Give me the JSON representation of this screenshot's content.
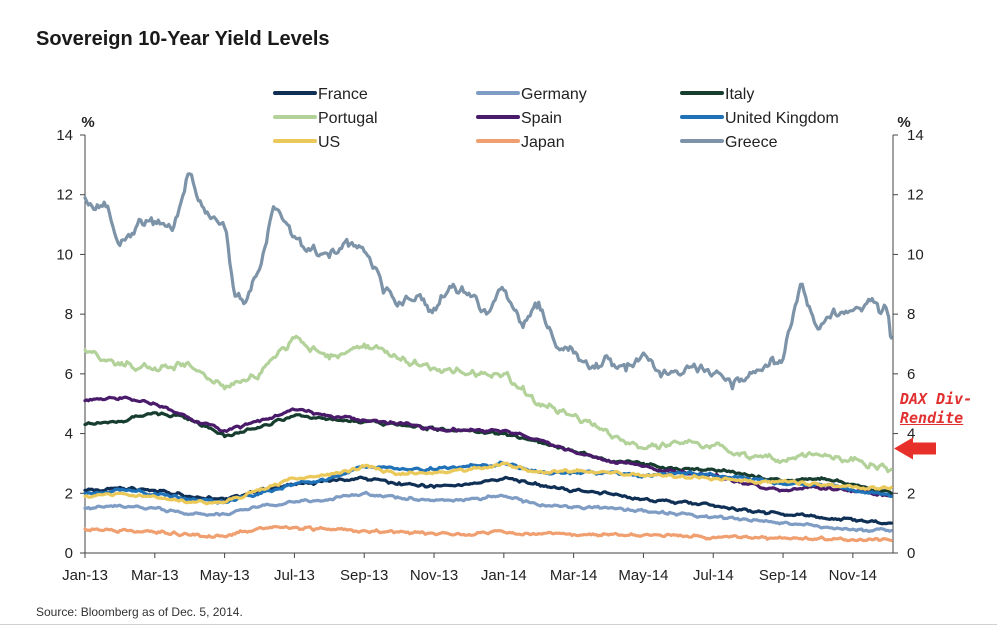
{
  "chart_data": {
    "type": "line",
    "title": "Sovereign 10-Year Yield Levels",
    "ylabel_left": "%",
    "ylabel_right": "%",
    "ylim": [
      0,
      14
    ],
    "yticks": [
      0,
      2,
      4,
      6,
      8,
      10,
      12,
      14
    ],
    "x_tick_labels": [
      "Jan-13",
      "Mar-13",
      "May-13",
      "Jul-13",
      "Sep-13",
      "Nov-13",
      "Jan-14",
      "Mar-14",
      "May-14",
      "Jul-14",
      "Sep-14",
      "Nov-14"
    ],
    "x_unit": "month index (0 = Jan-13)",
    "xlim": [
      0,
      23.15
    ],
    "series": [
      {
        "name": "France",
        "color": "#0f2f55",
        "x": [
          0,
          1,
          2,
          3,
          4,
          5,
          6,
          7,
          8,
          9,
          10,
          11,
          12,
          13,
          14,
          15,
          16,
          17,
          18,
          19,
          20,
          21,
          22,
          23.1
        ],
        "values": [
          2.1,
          2.2,
          2.1,
          1.9,
          1.8,
          2.1,
          2.3,
          2.4,
          2.5,
          2.35,
          2.2,
          2.3,
          2.5,
          2.3,
          2.1,
          2.0,
          1.8,
          1.7,
          1.6,
          1.4,
          1.3,
          1.2,
          1.1,
          1.0
        ]
      },
      {
        "name": "Germany",
        "color": "#7f9dc4",
        "x": [
          0,
          1,
          2,
          3,
          4,
          5,
          6,
          7,
          8,
          9,
          10,
          11,
          12,
          13,
          14,
          15,
          16,
          17,
          18,
          19,
          20,
          21,
          22,
          23.1
        ],
        "values": [
          1.5,
          1.6,
          1.5,
          1.3,
          1.3,
          1.55,
          1.7,
          1.8,
          2.0,
          1.85,
          1.75,
          1.8,
          1.9,
          1.6,
          1.55,
          1.5,
          1.4,
          1.3,
          1.2,
          1.1,
          1.0,
          0.9,
          0.8,
          0.75
        ]
      },
      {
        "name": "Italy",
        "color": "#173d2f",
        "x": [
          0,
          1,
          2,
          3,
          4,
          5,
          6,
          7,
          8,
          9,
          10,
          11,
          12,
          13,
          14,
          15,
          16,
          17,
          18,
          19,
          20,
          21,
          22,
          23.1
        ],
        "values": [
          4.3,
          4.4,
          4.7,
          4.5,
          3.9,
          4.2,
          4.6,
          4.5,
          4.4,
          4.3,
          4.15,
          4.1,
          4.0,
          3.7,
          3.4,
          3.1,
          3.0,
          2.8,
          2.8,
          2.6,
          2.4,
          2.5,
          2.3,
          2.0
        ]
      },
      {
        "name": "Portugal",
        "color": "#b2d29a",
        "x": [
          0,
          1,
          2,
          3,
          4,
          5,
          6,
          7,
          8,
          9,
          10,
          11,
          12,
          13,
          14,
          15,
          16,
          17,
          18,
          19,
          20,
          21,
          22,
          23.1
        ],
        "values": [
          6.8,
          6.3,
          6.2,
          6.3,
          5.5,
          6.0,
          7.2,
          6.5,
          7.0,
          6.5,
          6.2,
          6.0,
          6.0,
          5.0,
          4.6,
          4.0,
          3.5,
          3.7,
          3.6,
          3.2,
          3.1,
          3.3,
          3.1,
          2.8
        ]
      },
      {
        "name": "Spain",
        "color": "#4a1a6b",
        "x": [
          0,
          1,
          2,
          3,
          4,
          5,
          6,
          7,
          8,
          9,
          10,
          11,
          12,
          13,
          14,
          15,
          16,
          17,
          18,
          19,
          20,
          21,
          22,
          23.1
        ],
        "values": [
          5.1,
          5.2,
          5.0,
          4.5,
          4.1,
          4.4,
          4.8,
          4.6,
          4.45,
          4.35,
          4.15,
          4.1,
          4.1,
          3.8,
          3.4,
          3.1,
          2.9,
          2.7,
          2.6,
          2.3,
          2.1,
          2.2,
          2.1,
          1.9
        ]
      },
      {
        "name": "United Kingdom",
        "color": "#1f72b8",
        "x": [
          0,
          1,
          2,
          3,
          4,
          5,
          6,
          7,
          8,
          9,
          10,
          11,
          12,
          13,
          14,
          15,
          16,
          17,
          18,
          19,
          20,
          21,
          22,
          23.1
        ],
        "values": [
          2.0,
          2.1,
          2.0,
          1.8,
          1.7,
          2.0,
          2.3,
          2.5,
          2.9,
          2.8,
          2.8,
          2.9,
          3.0,
          2.7,
          2.7,
          2.7,
          2.6,
          2.7,
          2.6,
          2.5,
          2.3,
          2.3,
          2.1,
          1.9
        ]
      },
      {
        "name": "US",
        "color": "#eac95a",
        "x": [
          0,
          1,
          2,
          3,
          4,
          5,
          6,
          7,
          8,
          9,
          10,
          11,
          12,
          13,
          14,
          15,
          16,
          17,
          18,
          19,
          20,
          21,
          22,
          23.1
        ],
        "values": [
          1.9,
          2.0,
          1.9,
          1.7,
          1.7,
          2.1,
          2.5,
          2.6,
          2.9,
          2.65,
          2.7,
          2.8,
          3.0,
          2.7,
          2.75,
          2.7,
          2.6,
          2.55,
          2.5,
          2.4,
          2.4,
          2.3,
          2.2,
          2.2
        ]
      },
      {
        "name": "Japan",
        "color": "#f0a070",
        "x": [
          0,
          1,
          2,
          3,
          4,
          5,
          6,
          7,
          8,
          9,
          10,
          11,
          12,
          13,
          14,
          15,
          16,
          17,
          18,
          19,
          20,
          21,
          22,
          23.1
        ],
        "values": [
          0.8,
          0.75,
          0.7,
          0.6,
          0.55,
          0.85,
          0.85,
          0.8,
          0.75,
          0.7,
          0.65,
          0.62,
          0.7,
          0.65,
          0.62,
          0.6,
          0.6,
          0.57,
          0.53,
          0.52,
          0.5,
          0.48,
          0.45,
          0.42
        ]
      },
      {
        "name": "Greece",
        "color": "#7d93a8",
        "x": [
          0,
          0.3,
          0.6,
          1.0,
          1.5,
          2.0,
          2.5,
          3.0,
          3.3,
          3.6,
          4.0,
          4.3,
          4.6,
          5.0,
          5.4,
          5.8,
          6.0,
          6.4,
          7.0,
          7.5,
          8.0,
          8.5,
          9.0,
          9.5,
          10.0,
          10.5,
          11.0,
          11.5,
          12.0,
          12.5,
          13.0,
          13.5,
          14.0,
          14.5,
          15.0,
          15.5,
          16.0,
          16.5,
          17.0,
          17.5,
          18.0,
          18.5,
          19.0,
          19.5,
          20.0,
          20.5,
          21.0,
          21.3,
          21.5,
          21.8,
          22.2,
          22.6,
          23.0,
          23.1
        ],
        "values": [
          11.9,
          11.5,
          11.6,
          10.3,
          11.0,
          11.1,
          10.8,
          12.7,
          11.8,
          11.2,
          10.9,
          8.6,
          8.4,
          9.5,
          11.6,
          11.0,
          10.6,
          10.2,
          9.9,
          10.5,
          10.1,
          9.0,
          8.4,
          8.6,
          8.2,
          8.9,
          8.7,
          8.0,
          8.8,
          7.7,
          8.4,
          6.9,
          6.7,
          6.2,
          6.5,
          6.1,
          6.7,
          5.9,
          6.0,
          6.2,
          6.0,
          5.7,
          5.9,
          6.3,
          6.5,
          9.0,
          7.5,
          7.9,
          8.0,
          8.1,
          8.2,
          8.4,
          8.0,
          7.2
        ]
      }
    ]
  },
  "annotation": {
    "line1": "DAX Div-",
    "line2": "Rendite",
    "target_value": 3.5
  },
  "source_note": "Source: Bloomberg as of Dec. 5, 2014."
}
